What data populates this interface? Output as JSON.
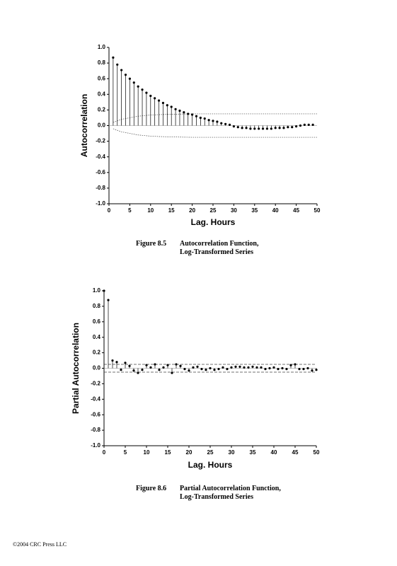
{
  "chart_data": [
    {
      "type": "stem",
      "x_label": "Lag. Hours",
      "y_label": "Autocorrelation",
      "x": [
        1,
        2,
        3,
        4,
        5,
        6,
        7,
        8,
        9,
        10,
        11,
        12,
        13,
        14,
        15,
        16,
        17,
        18,
        19,
        20,
        21,
        22,
        23,
        24,
        25,
        26,
        27,
        28,
        29,
        30,
        31,
        32,
        33,
        34,
        35,
        36,
        37,
        38,
        39,
        40,
        41,
        42,
        43,
        44,
        45,
        46,
        47,
        48,
        49
      ],
      "values": [
        0.87,
        0.78,
        0.71,
        0.65,
        0.6,
        0.55,
        0.5,
        0.46,
        0.42,
        0.38,
        0.35,
        0.32,
        0.29,
        0.26,
        0.24,
        0.21,
        0.19,
        0.17,
        0.15,
        0.14,
        0.12,
        0.1,
        0.09,
        0.07,
        0.06,
        0.05,
        0.03,
        0.02,
        0.01,
        -0.01,
        -0.02,
        -0.03,
        -0.03,
        -0.04,
        -0.04,
        -0.04,
        -0.04,
        -0.04,
        -0.04,
        -0.03,
        -0.03,
        -0.03,
        -0.02,
        -0.02,
        -0.01,
        0.0,
        0.01,
        0.01,
        0.01
      ],
      "color": "#000000",
      "bands": {
        "x": [
          1,
          2,
          3,
          4,
          5,
          6,
          7,
          8,
          9,
          10,
          12,
          15,
          20,
          25,
          30,
          35,
          40,
          45,
          50
        ],
        "upper": [
          0.04,
          0.06,
          0.08,
          0.09,
          0.1,
          0.11,
          0.12,
          0.125,
          0.13,
          0.135,
          0.14,
          0.145,
          0.15,
          0.15,
          0.15,
          0.15,
          0.15,
          0.15,
          0.15
        ],
        "lower": [
          -0.04,
          -0.06,
          -0.08,
          -0.09,
          -0.1,
          -0.11,
          -0.12,
          -0.125,
          -0.13,
          -0.135,
          -0.14,
          -0.145,
          -0.15,
          -0.15,
          -0.15,
          -0.15,
          -0.15,
          -0.15,
          -0.15
        ]
      },
      "xlim": [
        0,
        50
      ],
      "xticks": [
        0,
        5,
        10,
        15,
        20,
        25,
        30,
        35,
        40,
        45,
        50
      ],
      "ylim": [
        -1,
        1
      ],
      "yticks": [
        {
          "value": 1,
          "label": "1.0"
        },
        0.8,
        0.6,
        0.4,
        0.2,
        {
          "value": 0,
          "label": "0.0"
        },
        -0.2,
        -0.4,
        -0.6,
        -0.8,
        {
          "value": -1,
          "label": "-1.0"
        }
      ]
    },
    {
      "type": "stem",
      "x_label": "Lag. Hours",
      "y_label": "Partial Autocorrelation",
      "x": [
        0,
        1,
        2,
        3,
        4,
        5,
        6,
        7,
        8,
        9,
        10,
        11,
        12,
        13,
        14,
        15,
        16,
        17,
        18,
        19,
        20,
        21,
        22,
        23,
        24,
        25,
        26,
        27,
        28,
        29,
        30,
        31,
        32,
        33,
        34,
        35,
        36,
        37,
        38,
        39,
        40,
        41,
        42,
        43,
        44,
        45,
        46,
        47,
        48,
        49,
        50
      ],
      "values": [
        1.0,
        0.88,
        0.1,
        0.08,
        -0.02,
        0.07,
        0.03,
        -0.03,
        -0.06,
        -0.02,
        0.04,
        0.01,
        0.05,
        -0.02,
        0.01,
        0.04,
        -0.06,
        0.05,
        0.03,
        -0.01,
        -0.03,
        0.01,
        0.02,
        -0.01,
        -0.02,
        0.0,
        -0.02,
        -0.01,
        0.01,
        -0.01,
        0.01,
        0.02,
        0.02,
        0.01,
        0.01,
        0.02,
        0.01,
        0.01,
        -0.01,
        0.0,
        0.01,
        -0.01,
        0.0,
        -0.01,
        0.04,
        0.05,
        -0.01,
        -0.01,
        0.0,
        -0.03,
        -0.02
      ],
      "color": "#000000",
      "bands": {
        "x": [
          0,
          50
        ],
        "upper": [
          0.05,
          0.05
        ],
        "lower": [
          -0.05,
          -0.05
        ]
      },
      "xlim": [
        0,
        50
      ],
      "xticks": [
        0,
        5,
        10,
        15,
        20,
        25,
        30,
        35,
        40,
        45,
        50
      ],
      "ylim": [
        -1,
        1
      ],
      "yticks": [
        {
          "value": 1,
          "label": "1.0"
        },
        0.8,
        0.6,
        0.4,
        0.2,
        {
          "value": 0,
          "label": "0.0"
        },
        -0.2,
        -0.4,
        -0.6,
        -0.8,
        {
          "value": -1,
          "label": "-1.0"
        }
      ]
    }
  ],
  "captions": [
    {
      "number": "Figure 8.5",
      "lines": [
        "Autocorrelation Function,",
        "Log-Transformed Series"
      ]
    },
    {
      "number": "Figure 8.6",
      "lines": [
        "Partial Autocorrelation Function,",
        "Log-Transformed Series"
      ]
    }
  ],
  "footer": "©2004 CRC Press LLC"
}
